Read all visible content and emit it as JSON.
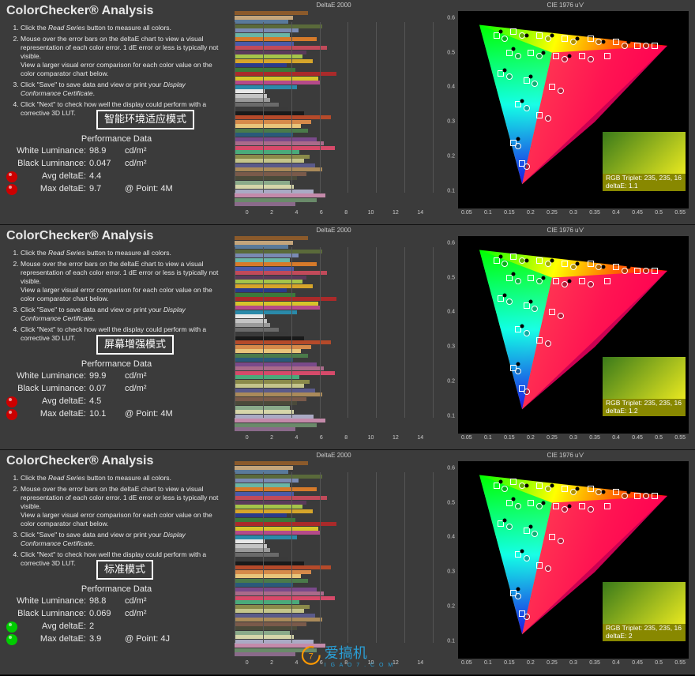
{
  "panels": [
    {
      "title": "ColorChecker® Analysis",
      "mode_label": "智能环境适应模式",
      "perf_title": "Performance Data",
      "white_luminance": {
        "label": "White Luminance:",
        "value": "98.9",
        "unit": "cd/m²"
      },
      "black_luminance": {
        "label": "Black Luminance:",
        "value": "0.047",
        "unit": "cd/m²"
      },
      "avg_deltae": {
        "label": "Avg deltaE:",
        "value": "4.4",
        "dot_color": "#cc0000"
      },
      "max_deltae": {
        "label": "Max deltaE:",
        "value": "9.7",
        "at": "@ Point: 4M",
        "dot_color": "#cc0000"
      },
      "inset": {
        "rgb": "RGB Triplet: 235, 235, 16",
        "deltae": "deltaE: 1.1"
      }
    },
    {
      "title": "ColorChecker® Analysis",
      "mode_label": "屏幕增强模式",
      "perf_title": "Performance Data",
      "white_luminance": {
        "label": "White Luminance:",
        "value": "99.9",
        "unit": "cd/m²"
      },
      "black_luminance": {
        "label": "Black Luminance:",
        "value": "0.07",
        "unit": "cd/m²"
      },
      "avg_deltae": {
        "label": "Avg deltaE:",
        "value": "4.5",
        "dot_color": "#cc0000"
      },
      "max_deltae": {
        "label": "Max deltaE:",
        "value": "10.1",
        "at": "@ Point: 4M",
        "dot_color": "#cc0000"
      },
      "inset": {
        "rgb": "RGB Triplet: 235, 235, 16",
        "deltae": "deltaE: 1.2"
      }
    },
    {
      "title": "ColorChecker® Analysis",
      "mode_label": "标准模式",
      "perf_title": "Performance Data",
      "white_luminance": {
        "label": "White Luminance:",
        "value": "98.8",
        "unit": "cd/m²"
      },
      "black_luminance": {
        "label": "Black Luminance:",
        "value": "0.069",
        "unit": "cd/m²"
      },
      "avg_deltae": {
        "label": "Avg deltaE:",
        "value": "2",
        "dot_color": "#00cc00"
      },
      "max_deltae": {
        "label": "Max deltaE:",
        "value": "3.9",
        "at": "@ Point: 4J",
        "dot_color": "#00cc00"
      },
      "inset": {
        "rgb": "RGB Triplet: 235, 235, 16",
        "deltae": "deltaE: 2"
      }
    }
  ],
  "instructions": [
    {
      "pre": "Click the ",
      "em": "Read Series",
      "post": " button to measure all colors."
    },
    {
      "pre": "Mouse over the error bars on the deltaE chart to view a visual representation of each color error. 1 dE error or less is typically not visible.\nView a larger visual error comparison for each color value on the color comparator chart below."
    },
    {
      "pre": "Click \"Save\" to save data and view or print your ",
      "em": "Display Conformance Certificate",
      "post": "."
    },
    {
      "pre": "Click \"Next\" to check how well the display could perform with a corrective 3D LUT."
    }
  ],
  "mid_chart": {
    "title": "DeltaE 2000",
    "x_ticks": [
      "0",
      "2",
      "4",
      "6",
      "8",
      "10",
      "12",
      "14"
    ],
    "x_max": 14,
    "bar_colors": [
      "#8b5a2b",
      "#c4a57b",
      "#5a7a9a",
      "#5a6a3a",
      "#7a8ab4",
      "#6ab5a5",
      "#d67a2a",
      "#4a5aaa",
      "#c14a5a",
      "#5a3a5a",
      "#a5c44a",
      "#d6a52a",
      "#2a3a8a",
      "#3a7a3a",
      "#aa2a2a",
      "#d6c42a",
      "#b54a8a",
      "#2a8aaa",
      "#e8e8e8",
      "#c4c4c4",
      "#9a9a9a",
      "#6a6a6a",
      "#3a3a3a",
      "#1a1a1a",
      "#b54a2a",
      "#d68a4a",
      "#e8c47a",
      "#4a7a4a",
      "#2a5a7a",
      "#7a4a8a",
      "#aa6a8a",
      "#d64a6a",
      "#4aaa7a",
      "#8a8a4a",
      "#c4c48a",
      "#5a5a8a",
      "#aa8a5a",
      "#7a5a4a",
      "#4a4a3a",
      "#8aaa8a",
      "#d6d6aa",
      "#aaaac4",
      "#c48aaa",
      "#6a8a6a",
      "#8a6a8a"
    ],
    "bar_values": [
      5.2,
      4.1,
      3.8,
      6.2,
      4.5,
      3.9,
      5.8,
      4.2,
      6.5,
      5.1,
      4.8,
      5.5,
      3.7,
      4.3,
      7.2,
      5.9,
      6.1,
      4.4,
      2.1,
      2.3,
      2.5,
      3.1,
      3.8,
      4.9,
      6.8,
      5.4,
      4.7,
      5.2,
      4.1,
      5.8,
      6.3,
      7.1,
      4.6,
      5.3,
      4.9,
      5.7,
      6.2,
      5.1,
      4.4,
      3.9,
      4.2,
      5.6,
      6.4,
      5.8,
      4.3
    ]
  },
  "cie_chart": {
    "title": "CIE 1976 u'v'",
    "y_ticks": [
      "0.1",
      "0.2",
      "0.3",
      "0.4",
      "0.5",
      "0.6"
    ],
    "x_ticks": [
      "0.05",
      "0.1",
      "0.15",
      "0.2",
      "0.25",
      "0.3",
      "0.35",
      "0.4",
      "0.45",
      "0.5",
      "0.55"
    ],
    "ylim": [
      0.05,
      0.62
    ],
    "xlim": [
      0.03,
      0.57
    ],
    "gamut_vertices": [
      [
        0.08,
        0.58
      ],
      [
        0.52,
        0.52
      ],
      [
        0.18,
        0.12
      ]
    ],
    "markers_square": [
      [
        0.12,
        0.55
      ],
      [
        0.16,
        0.56
      ],
      [
        0.22,
        0.55
      ],
      [
        0.28,
        0.54
      ],
      [
        0.34,
        0.54
      ],
      [
        0.4,
        0.53
      ],
      [
        0.45,
        0.52
      ],
      [
        0.49,
        0.52
      ],
      [
        0.15,
        0.5
      ],
      [
        0.2,
        0.5
      ],
      [
        0.26,
        0.49
      ],
      [
        0.32,
        0.49
      ],
      [
        0.38,
        0.49
      ],
      [
        0.13,
        0.44
      ],
      [
        0.19,
        0.42
      ],
      [
        0.25,
        0.4
      ],
      [
        0.17,
        0.35
      ],
      [
        0.22,
        0.32
      ],
      [
        0.16,
        0.24
      ],
      [
        0.18,
        0.18
      ]
    ],
    "markers_circle": [
      [
        0.14,
        0.54
      ],
      [
        0.18,
        0.55
      ],
      [
        0.24,
        0.54
      ],
      [
        0.3,
        0.53
      ],
      [
        0.36,
        0.53
      ],
      [
        0.42,
        0.52
      ],
      [
        0.47,
        0.52
      ],
      [
        0.17,
        0.49
      ],
      [
        0.22,
        0.49
      ],
      [
        0.28,
        0.48
      ],
      [
        0.34,
        0.48
      ],
      [
        0.15,
        0.43
      ],
      [
        0.21,
        0.41
      ],
      [
        0.27,
        0.39
      ],
      [
        0.19,
        0.34
      ],
      [
        0.24,
        0.31
      ],
      [
        0.17,
        0.23
      ],
      [
        0.19,
        0.17
      ]
    ],
    "markers_dot": [
      [
        0.13,
        0.56
      ],
      [
        0.19,
        0.55
      ],
      [
        0.25,
        0.55
      ],
      [
        0.31,
        0.54
      ],
      [
        0.37,
        0.53
      ],
      [
        0.43,
        0.53
      ],
      [
        0.16,
        0.51
      ],
      [
        0.23,
        0.5
      ],
      [
        0.29,
        0.49
      ],
      [
        0.14,
        0.45
      ],
      [
        0.2,
        0.43
      ],
      [
        0.18,
        0.36
      ],
      [
        0.17,
        0.25
      ]
    ]
  },
  "watermark": {
    "brand": "爱搞机",
    "sub": "I G A O 7 . C O M"
  }
}
